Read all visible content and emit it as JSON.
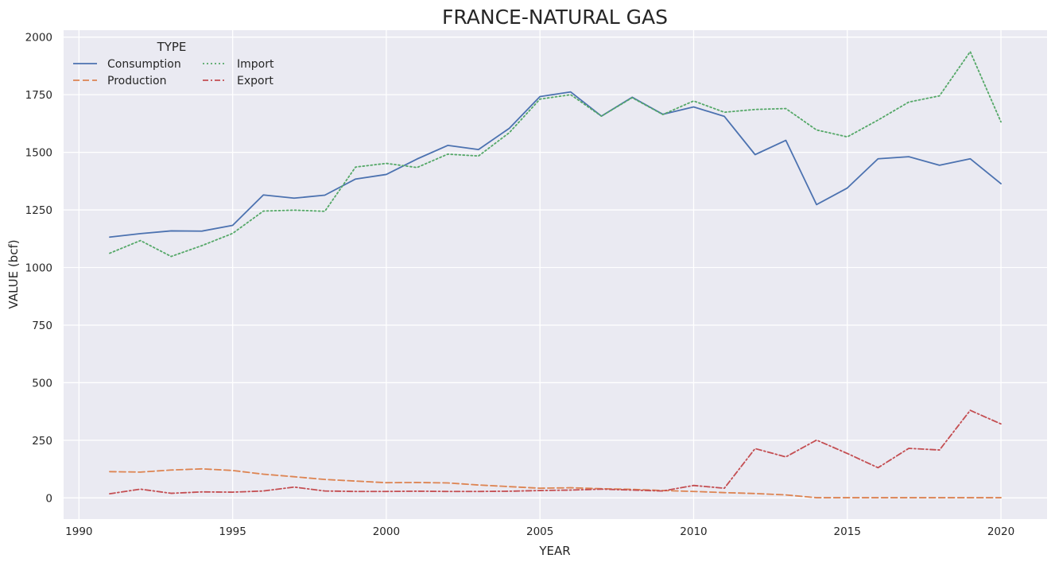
{
  "chart_data": {
    "type": "line",
    "title": "FRANCE-NATURAL GAS",
    "xlabel": "YEAR",
    "ylabel": "VALUE (bcf)",
    "xlim": [
      1989.5,
      2021.5
    ],
    "ylim": [
      -92,
      2030
    ],
    "grid": true,
    "x_ticks": [
      1990,
      1995,
      2000,
      2005,
      2010,
      2015,
      2020
    ],
    "y_ticks": [
      0,
      250,
      500,
      750,
      1000,
      1250,
      1500,
      1750,
      2000
    ],
    "legend": {
      "title": "TYPE",
      "position": "top-left"
    },
    "x": [
      1991,
      1992,
      1993,
      1994,
      1995,
      1996,
      1997,
      1998,
      1999,
      2000,
      2001,
      2002,
      2003,
      2004,
      2005,
      2006,
      2007,
      2008,
      2009,
      2010,
      2011,
      2012,
      2013,
      2014,
      2015,
      2016,
      2017,
      2018,
      2019,
      2020
    ],
    "series": [
      {
        "name": "Consumption",
        "color": "#4c72b0",
        "dash": "solid",
        "values": [
          1132,
          1147,
          1159,
          1158,
          1183,
          1315,
          1301,
          1314,
          1384,
          1404,
          1471,
          1530,
          1512,
          1604,
          1742,
          1762,
          1657,
          1739,
          1665,
          1697,
          1656,
          1490,
          1552,
          1273,
          1345,
          1472,
          1481,
          1444,
          1472,
          1364
        ]
      },
      {
        "name": "Production",
        "color": "#dd8452",
        "dash": "dashed",
        "values": [
          114,
          112,
          121,
          126,
          119,
          103,
          92,
          80,
          73,
          66,
          67,
          65,
          56,
          49,
          42,
          44,
          40,
          37,
          32,
          28,
          23,
          19,
          13,
          1,
          1,
          1,
          1,
          1,
          1,
          1
        ]
      },
      {
        "name": "Import",
        "color": "#55a868",
        "dash": "dotted",
        "values": [
          1062,
          1117,
          1048,
          1095,
          1148,
          1245,
          1249,
          1244,
          1436,
          1452,
          1434,
          1492,
          1484,
          1585,
          1731,
          1750,
          1657,
          1737,
          1664,
          1723,
          1674,
          1686,
          1690,
          1597,
          1567,
          1640,
          1718,
          1745,
          1937,
          1632
        ]
      },
      {
        "name": "Export",
        "color": "#c44e52",
        "dash": "dashdot",
        "values": [
          18,
          38,
          20,
          26,
          25,
          30,
          47,
          30,
          28,
          28,
          29,
          28,
          28,
          29,
          32,
          34,
          38,
          34,
          30,
          54,
          42,
          214,
          178,
          251,
          193,
          131,
          215,
          208,
          380,
          321
        ]
      }
    ]
  }
}
